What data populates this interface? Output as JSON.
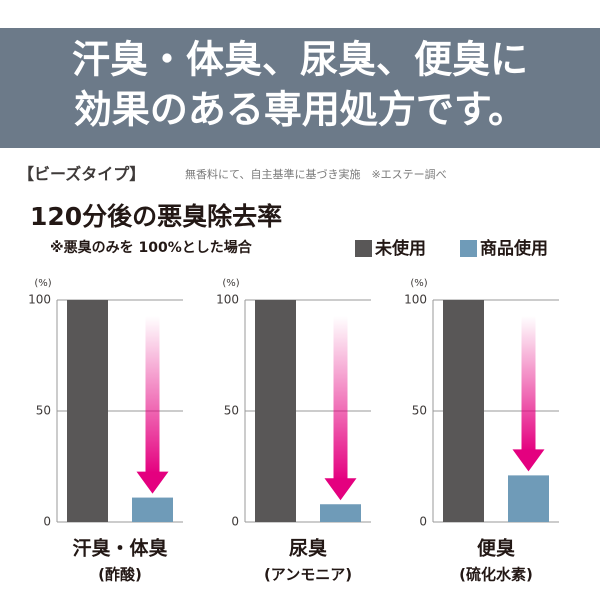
{
  "header": {
    "lines": [
      "汗臭・体臭、尿臭、便臭に",
      "効果のある専用処方です。"
    ]
  },
  "type_label": "【ビーズタイプ】",
  "note": "無香料にて、自主基準に基づき実施　※エステー調べ",
  "title": "120分後の悪臭除去率",
  "subtitle": "※悪臭のみを 100%とした場合",
  "legend": [
    {
      "label": "未使用",
      "color": "#595757"
    },
    {
      "label": "商品使用",
      "color": "#6f9bb8"
    }
  ],
  "chart_data": [
    {
      "type": "bar",
      "title": "汗臭・体臭",
      "subtitle": "(酢酸)",
      "y_label": "(%)",
      "values": [
        100,
        11
      ],
      "ylim": [
        0,
        100
      ],
      "yticks": [
        0,
        50,
        100
      ],
      "grid": true
    },
    {
      "type": "bar",
      "title": "尿臭",
      "subtitle": "(アンモニア)",
      "y_label": "(%)",
      "values": [
        100,
        8
      ],
      "ylim": [
        0,
        100
      ],
      "yticks": [
        0,
        50,
        100
      ],
      "grid": true
    },
    {
      "type": "bar",
      "title": "便臭",
      "subtitle": "(硫化水素)",
      "y_label": "(%)",
      "values": [
        100,
        21
      ],
      "ylim": [
        0,
        100
      ],
      "yticks": [
        0,
        50,
        100
      ],
      "grid": true
    }
  ]
}
